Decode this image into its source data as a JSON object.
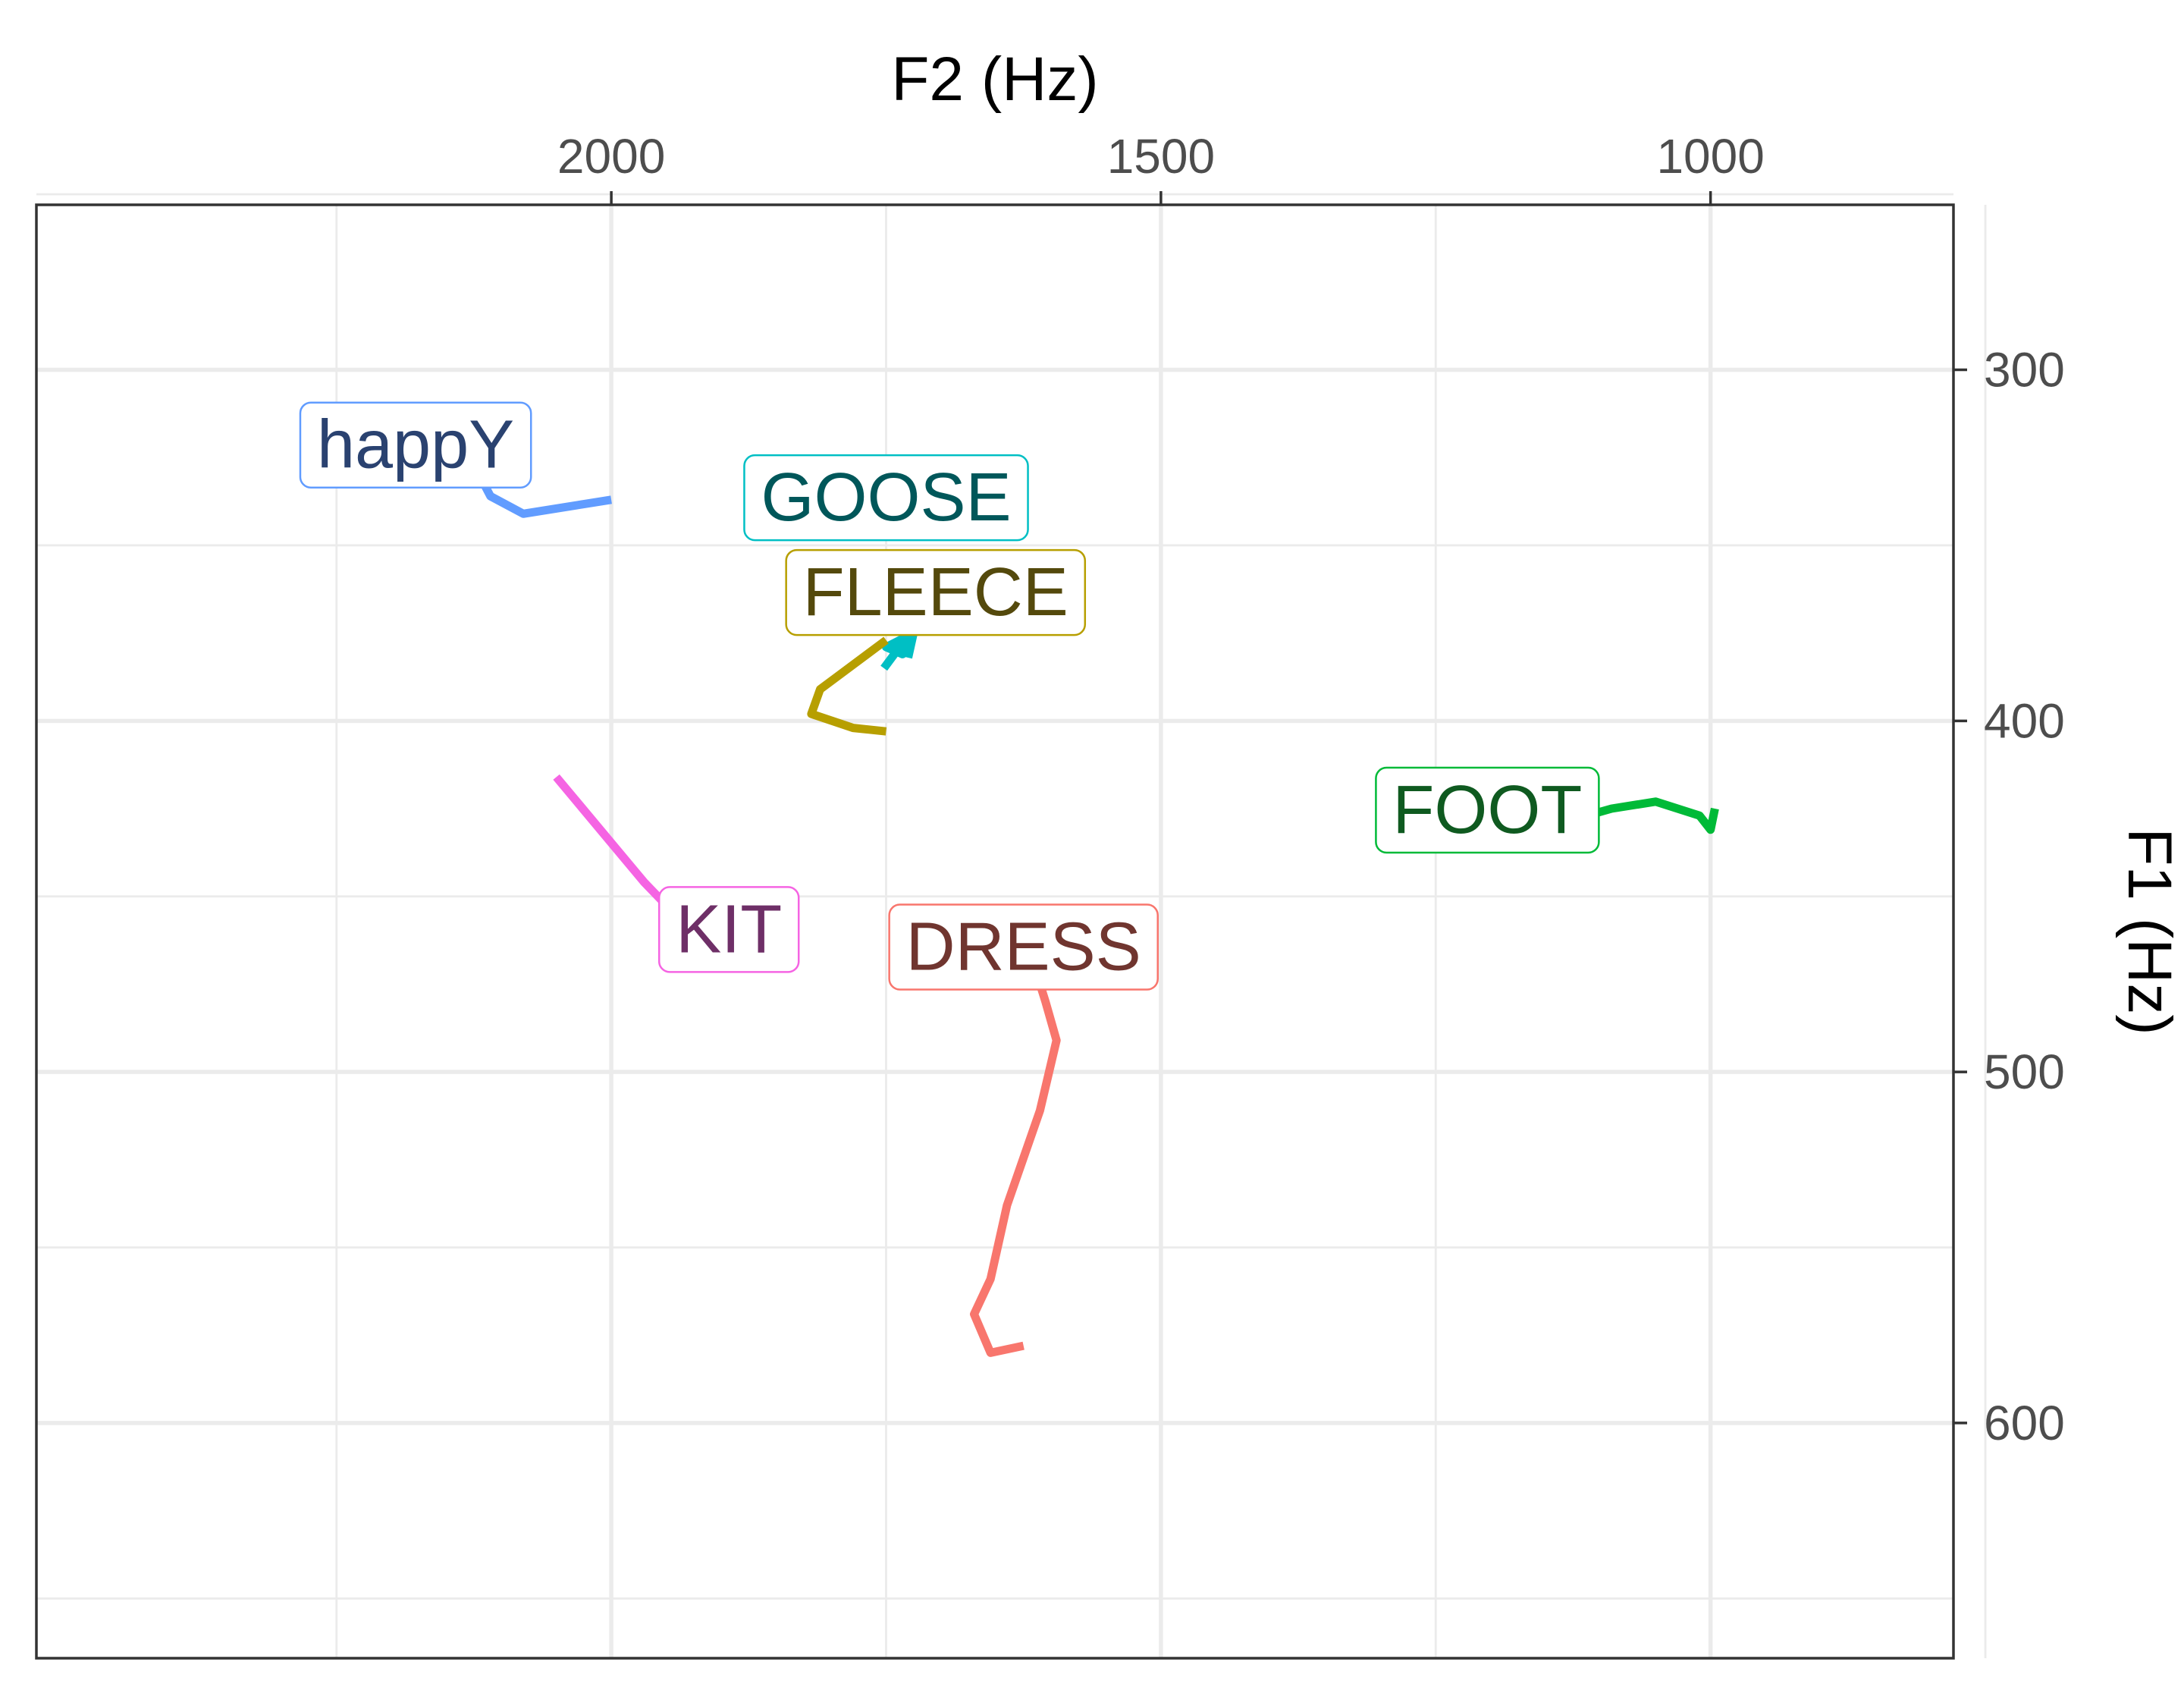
{
  "chart_data": {
    "type": "line",
    "xlabel": "F2 (Hz)",
    "ylabel": "F1 (Hz)",
    "x_axis_position": "top",
    "x_reversed": true,
    "y_axis_position": "right",
    "y_reversed": true,
    "xlim": [
      2523,
      779
    ],
    "ylim": [
      253,
      667
    ],
    "x_major_ticks": [
      2000,
      1500,
      1000
    ],
    "x_major_tick_labels": [
      "2000",
      "1500",
      "1000"
    ],
    "x_minor_grid": [
      2250,
      1750,
      1250,
      1000,
      750
    ],
    "y_major_ticks": [
      300,
      400,
      500,
      600
    ],
    "y_major_tick_labels": [
      "300",
      "400",
      "500",
      "600"
    ],
    "y_minor_grid": [
      250,
      350,
      450,
      550,
      650
    ],
    "grid": true,
    "legend": "none",
    "series": [
      {
        "name": "happY",
        "color": "#619CFF",
        "label_color": "#2A4270",
        "label_anchor": [
          2178,
          321
        ],
        "x": [
          2140,
          2120,
          2110,
          2080,
          2000
        ],
        "y": [
          327,
          330,
          336,
          341,
          337
        ]
      },
      {
        "name": "GOOSE",
        "color": "#00BFC4",
        "label_color": "#00575A",
        "label_anchor": [
          1750,
          336
        ],
        "x": [
          1752,
          1733,
          1735,
          1750,
          1725,
          1730
        ],
        "y": [
          385,
          377,
          381,
          379,
          375,
          382
        ]
      },
      {
        "name": "FLEECE",
        "color": "#B79F00",
        "label_color": "#54490C",
        "label_anchor": [
          1705,
          363
        ],
        "x": [
          1750,
          1810,
          1818,
          1780,
          1750
        ],
        "y": [
          377,
          391,
          398,
          402,
          403
        ]
      },
      {
        "name": "FOOT",
        "color": "#00BA38",
        "label_color": "#0F5A20",
        "label_anchor": [
          1203,
          425
        ],
        "x": [
          1124,
          1090,
          1050,
          1010,
          1000,
          996
        ],
        "y": [
          428,
          425,
          423,
          427,
          431,
          425
        ]
      },
      {
        "name": "KIT",
        "color": "#F564E3",
        "label_color": "#6E2F67",
        "label_anchor": [
          1893,
          459
        ],
        "x": [
          2050,
          2010,
          1970,
          1930,
          1890,
          1868
        ],
        "y": [
          416,
          431,
          446,
          459,
          463,
          465
        ]
      },
      {
        "name": "DRESS",
        "color": "#F8766D",
        "label_color": "#70352F",
        "label_anchor": [
          1625,
          464
        ],
        "x": [
          1615,
          1605,
          1595,
          1610,
          1640,
          1655,
          1670,
          1655,
          1625
        ],
        "y": [
          470,
          480,
          491,
          511,
          538,
          559,
          569,
          580,
          578
        ]
      }
    ]
  }
}
